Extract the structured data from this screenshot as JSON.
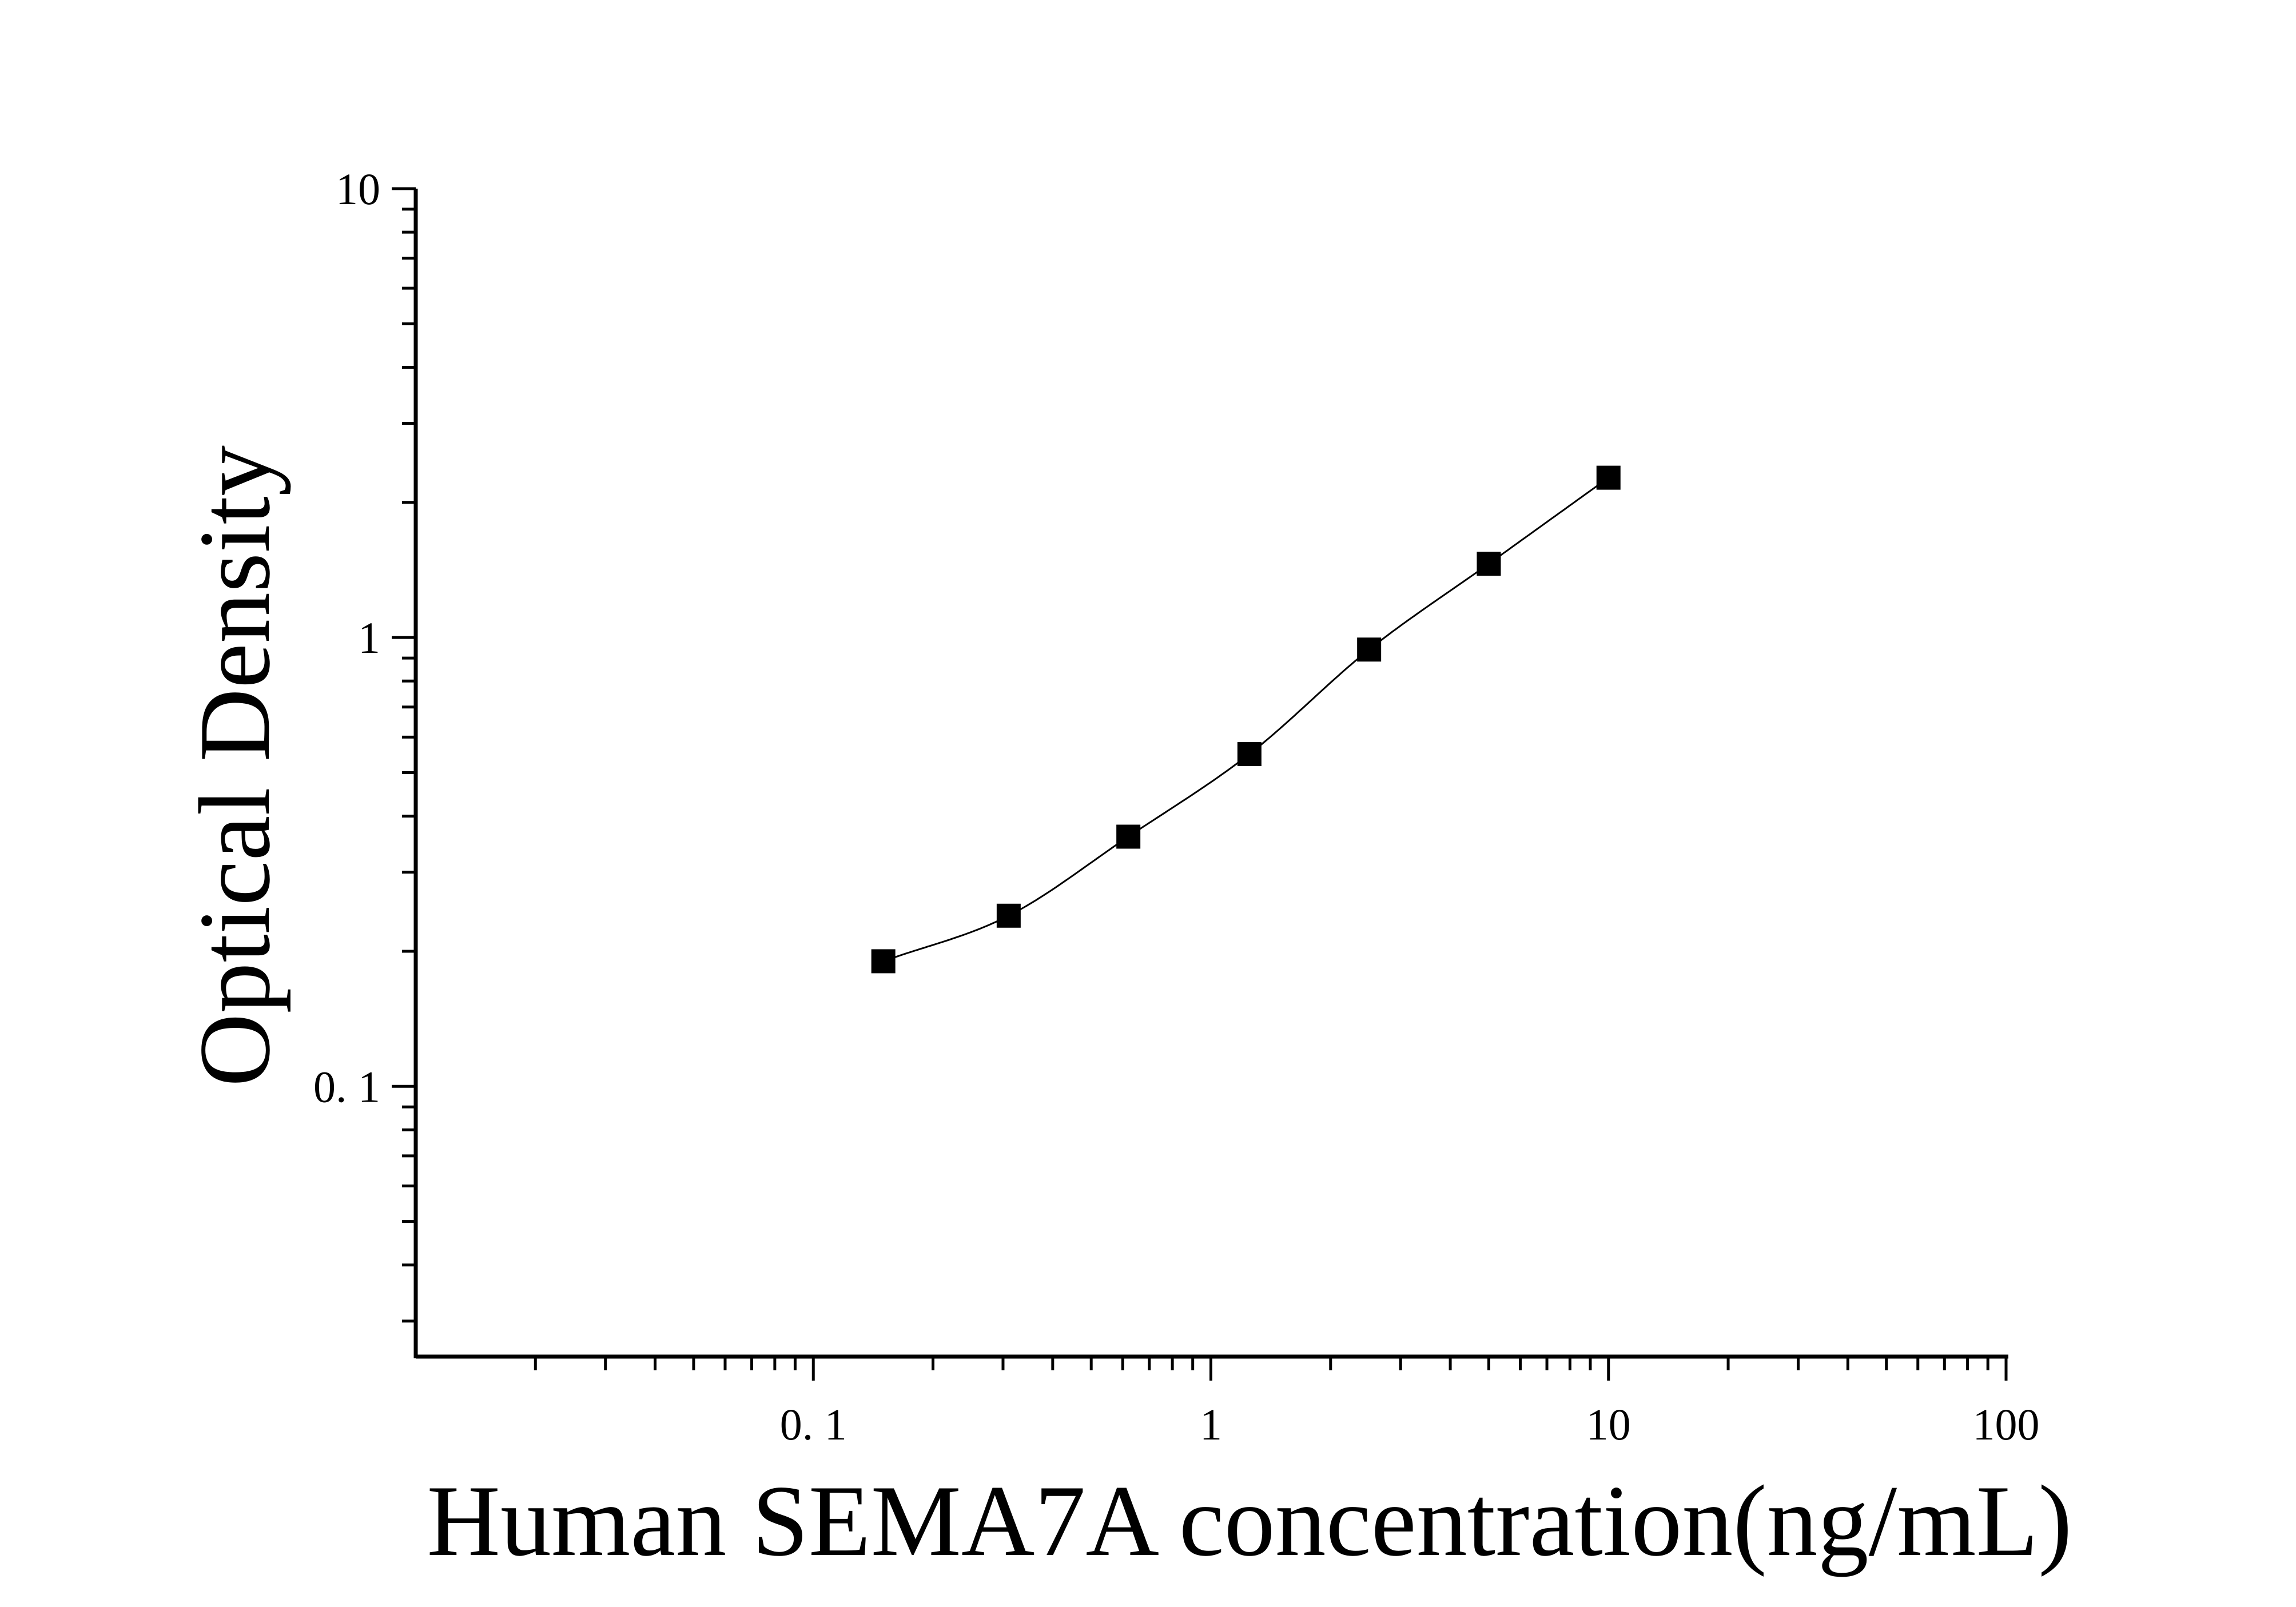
{
  "chart_data": {
    "type": "scatter",
    "title": "",
    "xlabel": "Human SEMA7A concentration(ng/mL)",
    "ylabel": "Optical Density",
    "x_scale": "log",
    "y_scale": "log",
    "xlim": [
      0.01,
      100
    ],
    "ylim": [
      0.025,
      10
    ],
    "x_tick_labels": [
      {
        "value": 0.1,
        "label": "0. 1"
      },
      {
        "value": 1,
        "label": "1"
      },
      {
        "value": 10,
        "label": "10"
      },
      {
        "value": 100,
        "label": "100"
      }
    ],
    "y_tick_labels": [
      {
        "value": 0.1,
        "label": "0. 1"
      },
      {
        "value": 1,
        "label": "1"
      },
      {
        "value": 10,
        "label": "10"
      }
    ],
    "grid": false,
    "legend": "none",
    "marker": "square",
    "color": "#000000",
    "series": [
      {
        "x": [
          0.15,
          0.31,
          0.62,
          1.25,
          2.5,
          5,
          10
        ],
        "y": [
          0.19,
          0.24,
          0.36,
          0.55,
          0.94,
          1.46,
          2.27
        ]
      }
    ],
    "fit_curve": true
  }
}
